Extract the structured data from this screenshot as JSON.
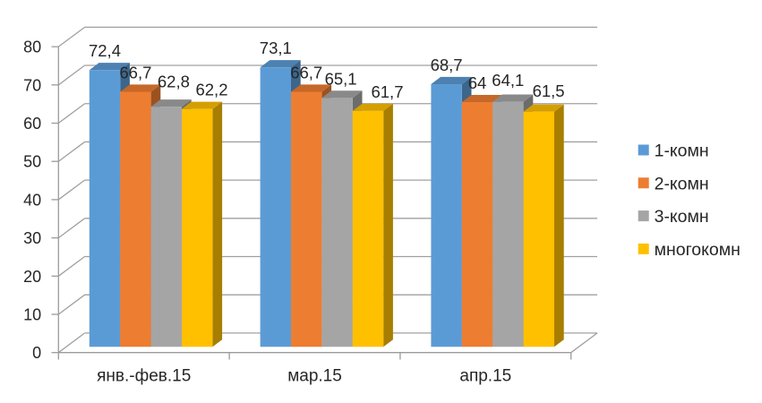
{
  "chart_data": {
    "type": "bar",
    "variant": "3d-clustered-column",
    "title": "",
    "xlabel": "",
    "ylabel": "",
    "categories": [
      "янв.-фев.15",
      "мар.15",
      "апр.15"
    ],
    "series": [
      {
        "name": "1-комн",
        "color": "#5B9BD5",
        "values": [
          72.4,
          73.1,
          68.7
        ]
      },
      {
        "name": "2-комн",
        "color": "#ED7D31",
        "values": [
          66.7,
          66.7,
          64
        ]
      },
      {
        "name": "3-комн",
        "color": "#A5A5A5",
        "values": [
          62.8,
          65.1,
          64.1
        ]
      },
      {
        "name": "многокомн",
        "color": "#FFC000",
        "values": [
          62.2,
          61.7,
          61.5
        ]
      }
    ],
    "data_labels": [
      [
        "72,4",
        "66,7",
        "62,8",
        "62,2"
      ],
      [
        "73,1",
        "66,7",
        "65,1",
        "61,7"
      ],
      [
        "68,7",
        "64",
        "64,1",
        "61,5"
      ]
    ],
    "ylim": [
      0,
      80
    ],
    "ytick_step": 10,
    "yticks": [
      0,
      10,
      20,
      30,
      40,
      50,
      60,
      70,
      80
    ],
    "grid": "horizontal",
    "legend": {
      "position": "right",
      "items": [
        "1-комн",
        "2-комн",
        "3-комн",
        "многокомн"
      ]
    },
    "colors": {
      "background": "#FFFFFF",
      "axis_line": "#9B9B9B",
      "gridline": "#A0A0A0",
      "text": "#262626"
    }
  }
}
